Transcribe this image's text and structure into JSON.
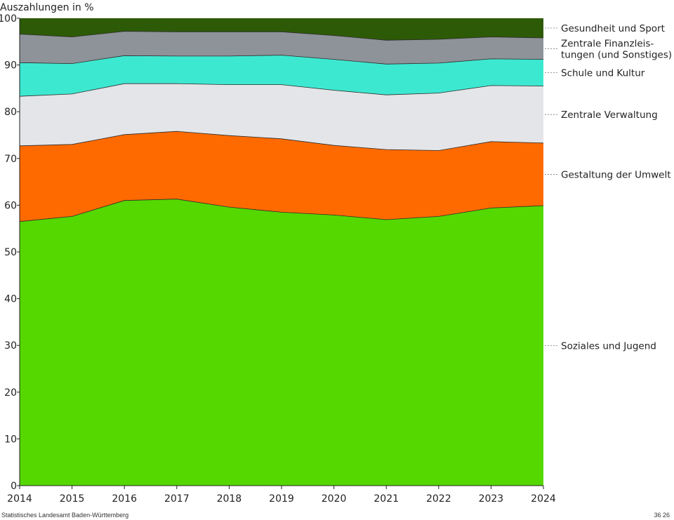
{
  "footer": {
    "source": "Statistisches Landesamt Baden-Württemberg",
    "page": "36 26"
  },
  "chart_data": {
    "type": "area",
    "stacked": true,
    "title": "Auszahlungen in %",
    "ylabel": "Auszahlungen in %",
    "xlabel": "",
    "ylim": [
      0,
      100
    ],
    "yticks": [
      0,
      10,
      20,
      30,
      40,
      50,
      60,
      70,
      80,
      90,
      100
    ],
    "x": [
      "2014",
      "2015",
      "2016",
      "2017",
      "2018",
      "2019",
      "2020",
      "2021",
      "2022",
      "2023",
      "2024"
    ],
    "series": [
      {
        "name": "Soziales und Jugend",
        "color": "#55d800",
        "values": [
          56.5,
          57.6,
          61.0,
          61.3,
          59.6,
          58.5,
          57.9,
          56.9,
          57.6,
          59.4,
          59.9
        ]
      },
      {
        "name": "Gestaltung der Umwelt",
        "color": "#ff6a00",
        "values": [
          16.2,
          15.4,
          14.1,
          14.5,
          15.3,
          15.7,
          14.9,
          15.0,
          14.1,
          14.2,
          13.4
        ]
      },
      {
        "name": "Zentrale Verwaltung",
        "color": "#e4e5e8",
        "values": [
          10.6,
          10.8,
          10.9,
          10.2,
          10.9,
          11.6,
          11.8,
          11.7,
          12.3,
          12.0,
          12.2
        ]
      },
      {
        "name": "Schule und Kultur",
        "color": "#3de8d0",
        "values": [
          7.2,
          6.5,
          6.0,
          5.9,
          6.1,
          6.3,
          6.6,
          6.6,
          6.4,
          5.7,
          5.7
        ]
      },
      {
        "name": "Zentrale Finanzleistungen (und Sonstiges)",
        "label_lines": [
          "Zentrale Finanzleis-",
          "tungen (und Sonstiges)"
        ],
        "color": "#8e9299",
        "values": [
          6.1,
          5.7,
          5.2,
          5.2,
          5.2,
          5.0,
          5.1,
          5.1,
          5.1,
          4.7,
          4.6
        ]
      },
      {
        "name": "Gesundheit und Sport",
        "color": "#2d5a06",
        "values": [
          3.4,
          4.0,
          2.8,
          2.9,
          2.9,
          2.9,
          3.7,
          4.7,
          4.5,
          4.0,
          4.2
        ]
      }
    ],
    "legend": "right, labels aligned to series"
  }
}
